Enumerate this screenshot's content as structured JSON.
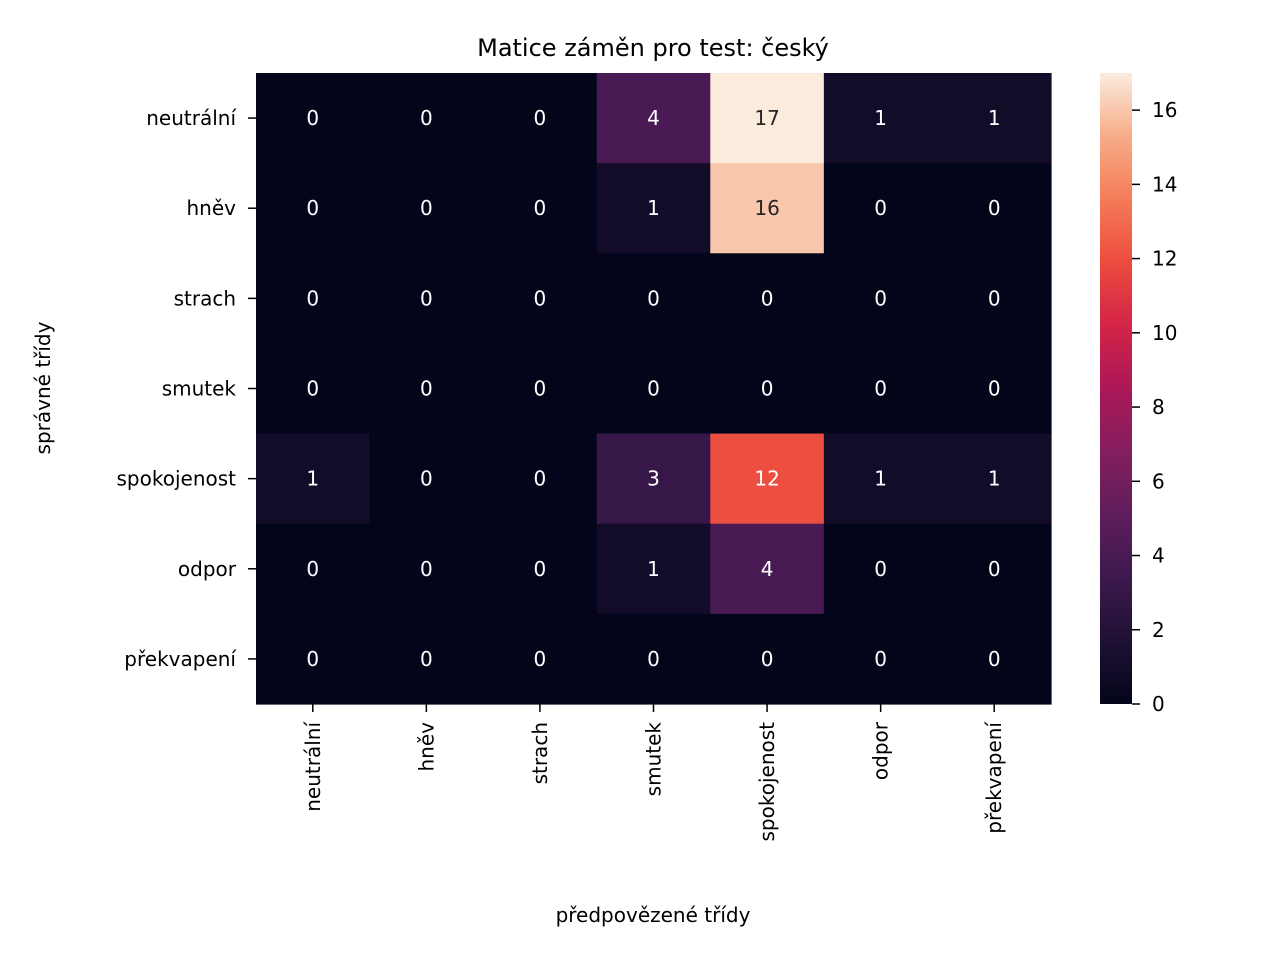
{
  "chart_data": {
    "type": "heatmap",
    "title": "Matice záměn pro test: český",
    "xlabel": "předpovězené třídy",
    "ylabel": "správné třídy",
    "x_categories": [
      "neutrální",
      "hněv",
      "strach",
      "smutek",
      "spokojenost",
      "odpor",
      "překvapení"
    ],
    "y_categories": [
      "neutrální",
      "hněv",
      "strach",
      "smutek",
      "spokojenost",
      "odpor",
      "překvapení"
    ],
    "values": [
      [
        0,
        0,
        0,
        4,
        17,
        1,
        1
      ],
      [
        0,
        0,
        0,
        1,
        16,
        0,
        0
      ],
      [
        0,
        0,
        0,
        0,
        0,
        0,
        0
      ],
      [
        0,
        0,
        0,
        0,
        0,
        0,
        0
      ],
      [
        1,
        0,
        0,
        3,
        12,
        1,
        1
      ],
      [
        0,
        0,
        0,
        1,
        4,
        0,
        0
      ],
      [
        0,
        0,
        0,
        0,
        0,
        0,
        0
      ]
    ],
    "colorbar": {
      "min": 0,
      "max": 17,
      "ticks": [
        0,
        2,
        4,
        6,
        8,
        10,
        12,
        14,
        16
      ],
      "colormap": "rocket"
    },
    "annotations": true,
    "grid": false
  }
}
